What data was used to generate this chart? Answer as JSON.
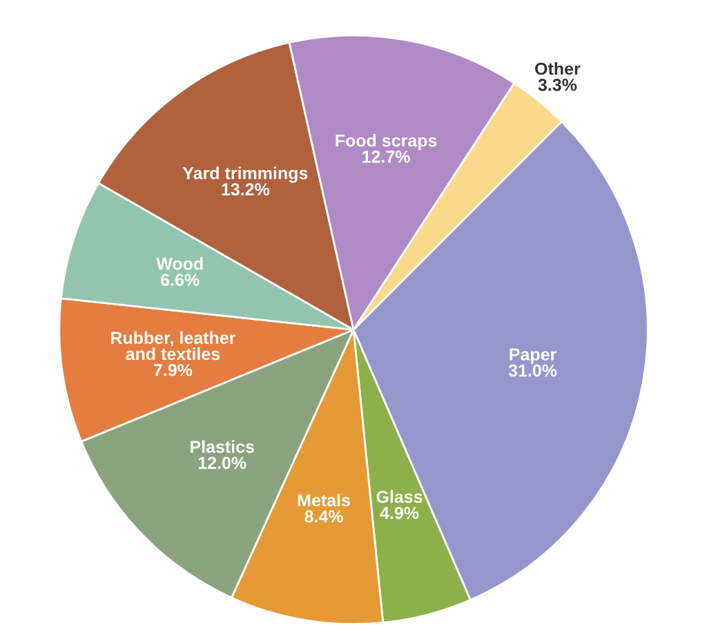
{
  "chart_data": {
    "type": "pie",
    "categories": [
      "Paper",
      "Glass",
      "Metals",
      "Plastics",
      "Rubber, leather\nand textiles",
      "Wood",
      "Yard trimmings",
      "Food scraps",
      "Other"
    ],
    "values": [
      31.0,
      4.9,
      8.4,
      12.0,
      7.9,
      6.6,
      13.2,
      12.7,
      3.3
    ],
    "colors": [
      "#9597cc",
      "#8db04a",
      "#e59a35",
      "#8aa37e",
      "#e57c40",
      "#93c4b0",
      "#b0613d",
      "#b08ac4",
      "#fad98a"
    ],
    "value_labels": [
      "31.0%",
      "4.9%",
      "8.4%",
      "12.0%",
      "7.9%",
      "6.6%",
      "13.2%",
      "12.7%",
      "3.3%"
    ],
    "legend": false
  }
}
